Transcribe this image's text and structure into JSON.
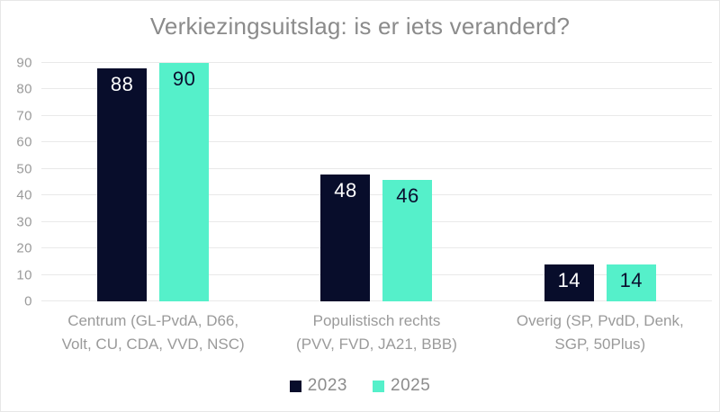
{
  "frame": {
    "background": "#FFFFFF",
    "border_color": "#E7E7E7"
  },
  "chart_data": {
    "type": "bar",
    "title": "Verkiezingsuitslag: is er iets veranderd?",
    "categories": [
      "Centrum (GL-PvdA, D66,\nVolt, CU, CDA, VVD, NSC)",
      "Populistisch rechts\n(PVV, FVD, JA21, BBB)",
      "Overig (SP, PvdD, Denk,\nSGP, 50Plus)"
    ],
    "series": [
      {
        "name": "2023",
        "color": "#080D2B",
        "label_color": "#FFFFFF",
        "values": [
          88,
          48,
          14
        ]
      },
      {
        "name": "2025",
        "color": "#55F0CA",
        "label_color": "#0A0E2E",
        "values": [
          90,
          46,
          14
        ]
      }
    ],
    "xlabel": "",
    "ylabel": "",
    "ylim": [
      0,
      90
    ],
    "yticks": [
      0,
      10,
      20,
      30,
      40,
      50,
      60,
      70,
      80,
      90
    ],
    "grid": true,
    "legend_position": "bottom",
    "colors": {
      "grid_line": "#E9E9E9",
      "title_text": "#8B8B8B",
      "axis_text": "#9A9A9A",
      "category_text": "#9A9A9A",
      "legend_text": "#8C8C8C"
    }
  }
}
